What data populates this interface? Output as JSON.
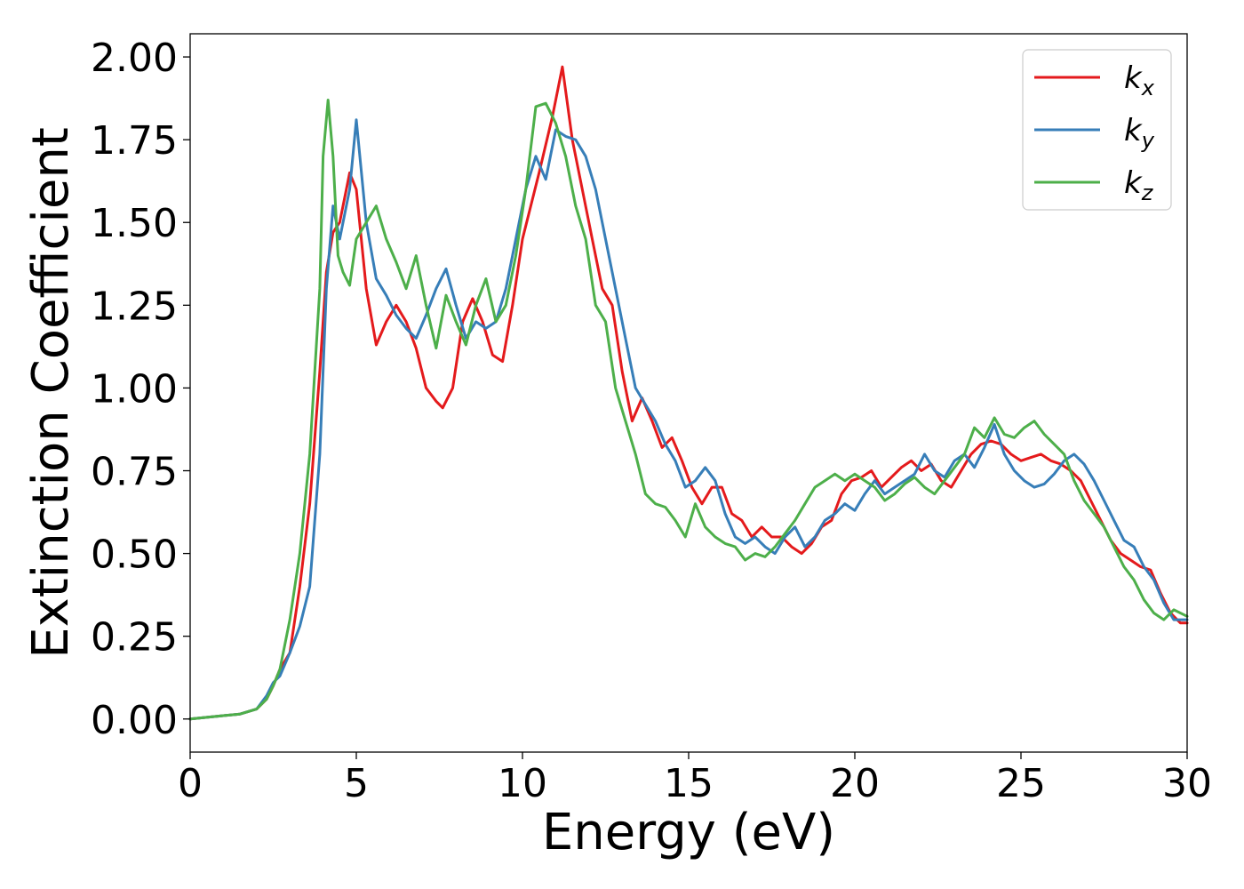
{
  "chart_data": {
    "type": "line",
    "xlabel": "Energy (eV)",
    "ylabel": "Extinction Coefficient",
    "xlim": [
      0,
      30
    ],
    "ylim": [
      -0.1,
      2.07
    ],
    "xticks": [
      0,
      5,
      10,
      15,
      20,
      25,
      30
    ],
    "xtick_labels": [
      "0",
      "5",
      "10",
      "15",
      "20",
      "25",
      "30"
    ],
    "yticks": [
      0.0,
      0.25,
      0.5,
      0.75,
      1.0,
      1.25,
      1.5,
      1.75,
      2.0
    ],
    "ytick_labels": [
      "0.00",
      "0.25",
      "0.50",
      "0.75",
      "1.00",
      "1.25",
      "1.50",
      "1.75",
      "2.00"
    ],
    "grid": false,
    "legend_position": "top-right",
    "series": [
      {
        "name": "kx",
        "label_main": "k",
        "label_sub": "x",
        "color": "#e41a1c",
        "x": [
          0,
          1,
          1.5,
          2,
          2.3,
          2.5,
          2.7,
          3.0,
          3.3,
          3.6,
          3.9,
          4.1,
          4.3,
          4.5,
          4.8,
          5.0,
          5.3,
          5.6,
          5.9,
          6.2,
          6.5,
          6.8,
          7.1,
          7.4,
          7.6,
          7.9,
          8.2,
          8.5,
          8.8,
          9.1,
          9.4,
          9.7,
          10.0,
          10.5,
          10.9,
          11.2,
          11.5,
          11.8,
          12.1,
          12.4,
          12.7,
          13.0,
          13.3,
          13.6,
          13.9,
          14.2,
          14.5,
          14.8,
          15.1,
          15.4,
          15.7,
          16.0,
          16.3,
          16.6,
          16.9,
          17.2,
          17.5,
          17.8,
          18.1,
          18.4,
          18.7,
          19.0,
          19.3,
          19.6,
          19.9,
          20.2,
          20.5,
          20.8,
          21.1,
          21.4,
          21.7,
          22.0,
          22.3,
          22.6,
          22.9,
          23.2,
          23.5,
          23.8,
          24.1,
          24.4,
          24.7,
          25.0,
          25.3,
          25.6,
          25.9,
          26.2,
          26.5,
          26.8,
          27.1,
          27.4,
          27.7,
          28.0,
          28.3,
          28.6,
          28.9,
          29.2,
          29.5,
          29.8,
          30.0
        ],
        "y": [
          0.0,
          0.01,
          0.015,
          0.03,
          0.06,
          0.1,
          0.15,
          0.2,
          0.4,
          0.65,
          1.05,
          1.35,
          1.47,
          1.5,
          1.65,
          1.6,
          1.3,
          1.13,
          1.2,
          1.25,
          1.2,
          1.12,
          1.0,
          0.96,
          0.94,
          1.0,
          1.2,
          1.27,
          1.2,
          1.1,
          1.08,
          1.25,
          1.45,
          1.65,
          1.82,
          1.97,
          1.75,
          1.6,
          1.45,
          1.3,
          1.25,
          1.05,
          0.9,
          0.97,
          0.9,
          0.82,
          0.85,
          0.78,
          0.7,
          0.65,
          0.7,
          0.7,
          0.62,
          0.6,
          0.55,
          0.58,
          0.55,
          0.55,
          0.52,
          0.5,
          0.53,
          0.58,
          0.6,
          0.68,
          0.72,
          0.73,
          0.75,
          0.7,
          0.73,
          0.76,
          0.78,
          0.75,
          0.77,
          0.72,
          0.7,
          0.75,
          0.8,
          0.83,
          0.84,
          0.83,
          0.8,
          0.78,
          0.79,
          0.8,
          0.78,
          0.77,
          0.75,
          0.72,
          0.66,
          0.6,
          0.54,
          0.5,
          0.48,
          0.46,
          0.45,
          0.38,
          0.32,
          0.29,
          0.29
        ]
      },
      {
        "name": "ky",
        "label_main": "k",
        "label_sub": "y",
        "color": "#377eb8",
        "x": [
          0,
          1,
          1.5,
          2,
          2.3,
          2.5,
          2.7,
          3.0,
          3.3,
          3.6,
          3.9,
          4.1,
          4.3,
          4.5,
          4.8,
          5.0,
          5.3,
          5.6,
          5.9,
          6.2,
          6.5,
          6.8,
          7.1,
          7.4,
          7.7,
          8.0,
          8.3,
          8.6,
          8.9,
          9.2,
          9.5,
          9.8,
          10.1,
          10.4,
          10.7,
          11.0,
          11.3,
          11.6,
          11.9,
          12.2,
          12.5,
          12.8,
          13.1,
          13.4,
          13.7,
          14.0,
          14.3,
          14.6,
          14.9,
          15.2,
          15.5,
          15.8,
          16.1,
          16.4,
          16.7,
          17.0,
          17.3,
          17.6,
          17.9,
          18.2,
          18.5,
          18.8,
          19.1,
          19.4,
          19.7,
          20.0,
          20.3,
          20.6,
          20.9,
          21.2,
          21.5,
          21.8,
          22.1,
          22.4,
          22.7,
          23.0,
          23.3,
          23.6,
          23.9,
          24.2,
          24.5,
          24.8,
          25.1,
          25.4,
          25.7,
          26.0,
          26.3,
          26.6,
          26.9,
          27.2,
          27.5,
          27.8,
          28.1,
          28.4,
          28.7,
          29.0,
          29.3,
          29.6,
          30.0
        ],
        "y": [
          0.0,
          0.01,
          0.015,
          0.03,
          0.07,
          0.11,
          0.13,
          0.2,
          0.28,
          0.4,
          0.8,
          1.3,
          1.55,
          1.45,
          1.6,
          1.81,
          1.5,
          1.33,
          1.28,
          1.22,
          1.18,
          1.15,
          1.22,
          1.3,
          1.36,
          1.25,
          1.15,
          1.2,
          1.18,
          1.2,
          1.3,
          1.45,
          1.6,
          1.7,
          1.63,
          1.78,
          1.76,
          1.75,
          1.7,
          1.6,
          1.45,
          1.3,
          1.15,
          1.0,
          0.95,
          0.9,
          0.83,
          0.78,
          0.7,
          0.72,
          0.76,
          0.72,
          0.62,
          0.55,
          0.53,
          0.55,
          0.52,
          0.5,
          0.55,
          0.58,
          0.52,
          0.55,
          0.6,
          0.62,
          0.65,
          0.63,
          0.68,
          0.72,
          0.68,
          0.7,
          0.72,
          0.74,
          0.8,
          0.75,
          0.73,
          0.78,
          0.8,
          0.76,
          0.82,
          0.89,
          0.8,
          0.75,
          0.72,
          0.7,
          0.71,
          0.74,
          0.78,
          0.8,
          0.77,
          0.72,
          0.66,
          0.6,
          0.54,
          0.52,
          0.46,
          0.42,
          0.35,
          0.3,
          0.3
        ]
      },
      {
        "name": "kz",
        "label_main": "k",
        "label_sub": "z",
        "color": "#4daf4a",
        "x": [
          0,
          1,
          1.5,
          2,
          2.3,
          2.5,
          2.7,
          3.0,
          3.3,
          3.6,
          3.9,
          4.0,
          4.15,
          4.3,
          4.45,
          4.6,
          4.8,
          5.0,
          5.3,
          5.6,
          5.9,
          6.2,
          6.5,
          6.8,
          7.1,
          7.4,
          7.7,
          8.0,
          8.3,
          8.6,
          8.9,
          9.2,
          9.5,
          9.8,
          10.1,
          10.4,
          10.7,
          11.0,
          11.3,
          11.6,
          11.9,
          12.2,
          12.5,
          12.8,
          13.1,
          13.4,
          13.7,
          14.0,
          14.3,
          14.6,
          14.9,
          15.2,
          15.5,
          15.8,
          16.1,
          16.4,
          16.7,
          17.0,
          17.3,
          17.6,
          17.9,
          18.2,
          18.5,
          18.8,
          19.1,
          19.4,
          19.7,
          20.0,
          20.3,
          20.6,
          20.9,
          21.2,
          21.5,
          21.8,
          22.1,
          22.4,
          22.7,
          23.0,
          23.3,
          23.6,
          23.9,
          24.2,
          24.5,
          24.8,
          25.1,
          25.4,
          25.7,
          26.0,
          26.3,
          26.6,
          26.9,
          27.2,
          27.5,
          27.8,
          28.1,
          28.4,
          28.7,
          29.0,
          29.3,
          29.6,
          30.0
        ],
        "y": [
          0.0,
          0.01,
          0.015,
          0.03,
          0.06,
          0.1,
          0.15,
          0.3,
          0.5,
          0.8,
          1.3,
          1.7,
          1.87,
          1.7,
          1.4,
          1.35,
          1.31,
          1.45,
          1.5,
          1.55,
          1.45,
          1.38,
          1.3,
          1.4,
          1.25,
          1.12,
          1.28,
          1.2,
          1.13,
          1.25,
          1.33,
          1.2,
          1.25,
          1.4,
          1.6,
          1.85,
          1.86,
          1.8,
          1.7,
          1.55,
          1.45,
          1.25,
          1.2,
          1.0,
          0.9,
          0.8,
          0.68,
          0.65,
          0.64,
          0.6,
          0.55,
          0.65,
          0.58,
          0.55,
          0.53,
          0.52,
          0.48,
          0.5,
          0.49,
          0.52,
          0.56,
          0.6,
          0.65,
          0.7,
          0.72,
          0.74,
          0.72,
          0.74,
          0.72,
          0.7,
          0.66,
          0.68,
          0.71,
          0.73,
          0.7,
          0.68,
          0.72,
          0.76,
          0.8,
          0.88,
          0.85,
          0.91,
          0.86,
          0.85,
          0.88,
          0.9,
          0.86,
          0.83,
          0.8,
          0.72,
          0.66,
          0.62,
          0.58,
          0.52,
          0.46,
          0.42,
          0.36,
          0.32,
          0.3,
          0.33,
          0.31
        ]
      }
    ]
  }
}
